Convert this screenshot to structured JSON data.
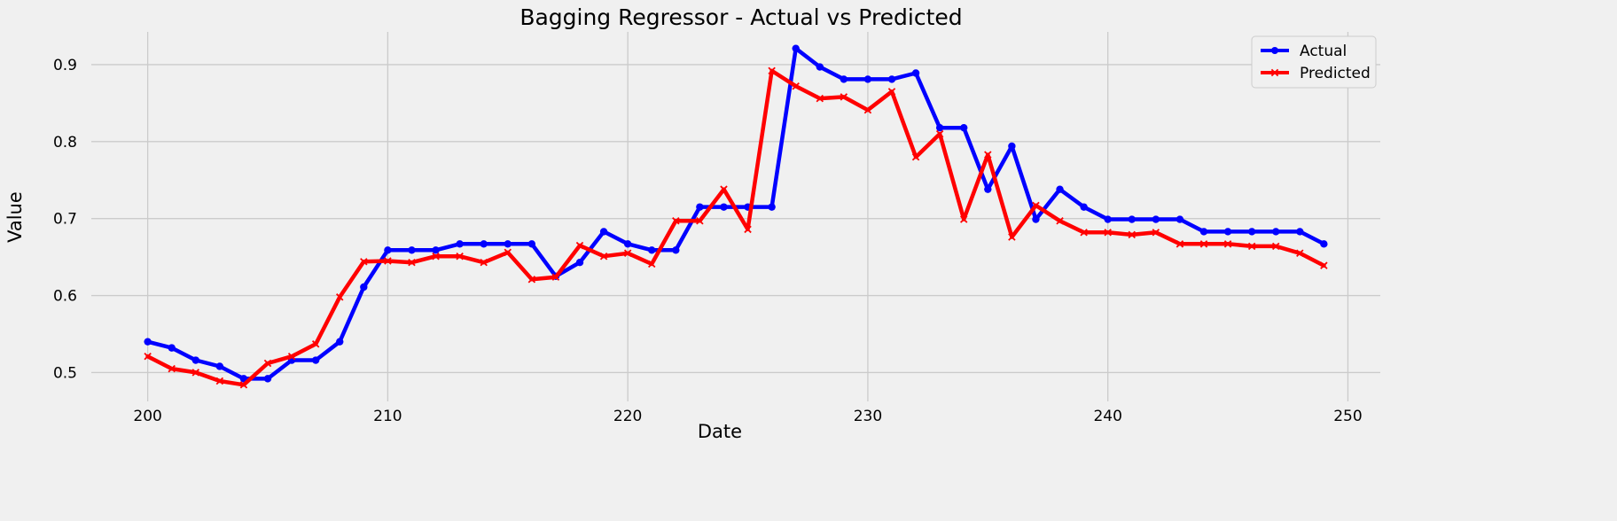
{
  "chart_data": {
    "type": "line",
    "title": "Bagging Regressor - Actual vs Predicted",
    "xlabel": "Date",
    "ylabel": "Value",
    "xlim": [
      197.65,
      251.35
    ],
    "ylim": [
      0.4625,
      0.9425
    ],
    "xticks": [
      200,
      210,
      220,
      230,
      240,
      250
    ],
    "yticks": [
      0.5,
      0.6,
      0.7,
      0.8,
      0.9
    ],
    "xtick_labels": [
      "200",
      "210",
      "220",
      "230",
      "240",
      "250"
    ],
    "ytick_labels": [
      "0.5",
      "0.6",
      "0.7",
      "0.8",
      "0.9"
    ],
    "grid": true,
    "legend_position": "top-right",
    "x": [
      200,
      201,
      202,
      203,
      204,
      205,
      206,
      207,
      208,
      209,
      210,
      211,
      212,
      213,
      214,
      215,
      216,
      217,
      218,
      219,
      220,
      221,
      222,
      223,
      224,
      225,
      226,
      227,
      228,
      229,
      230,
      231,
      232,
      233,
      234,
      235,
      236,
      237,
      238,
      239,
      240,
      241,
      242,
      243,
      244,
      245,
      246,
      247,
      248,
      249
    ],
    "series": [
      {
        "name": "Actual",
        "color": "#0000ff",
        "marker": "circle",
        "values": [
          0.54,
          0.532,
          0.516,
          0.508,
          0.492,
          0.492,
          0.516,
          0.516,
          0.54,
          0.611,
          0.659,
          0.659,
          0.659,
          0.667,
          0.667,
          0.667,
          0.667,
          0.625,
          0.643,
          0.683,
          0.667,
          0.659,
          0.659,
          0.715,
          0.715,
          0.715,
          0.715,
          0.921,
          0.897,
          0.881,
          0.881,
          0.881,
          0.889,
          0.818,
          0.818,
          0.738,
          0.794,
          0.699,
          0.738,
          0.715,
          0.699,
          0.699,
          0.699,
          0.699,
          0.683,
          0.683,
          0.683,
          0.683,
          0.683,
          0.667
        ]
      },
      {
        "name": "Predicted",
        "color": "#ff0000",
        "marker": "x",
        "values": [
          0.521,
          0.505,
          0.5,
          0.489,
          0.484,
          0.512,
          0.521,
          0.537,
          0.598,
          0.644,
          0.645,
          0.643,
          0.651,
          0.651,
          0.643,
          0.656,
          0.621,
          0.624,
          0.665,
          0.651,
          0.655,
          0.641,
          0.697,
          0.697,
          0.738,
          0.686,
          0.892,
          0.872,
          0.856,
          0.858,
          0.841,
          0.865,
          0.78,
          0.81,
          0.699,
          0.783,
          0.676,
          0.717,
          0.697,
          0.682,
          0.682,
          0.679,
          0.682,
          0.667,
          0.667,
          0.667,
          0.664,
          0.664,
          0.655,
          0.639
        ]
      }
    ]
  }
}
